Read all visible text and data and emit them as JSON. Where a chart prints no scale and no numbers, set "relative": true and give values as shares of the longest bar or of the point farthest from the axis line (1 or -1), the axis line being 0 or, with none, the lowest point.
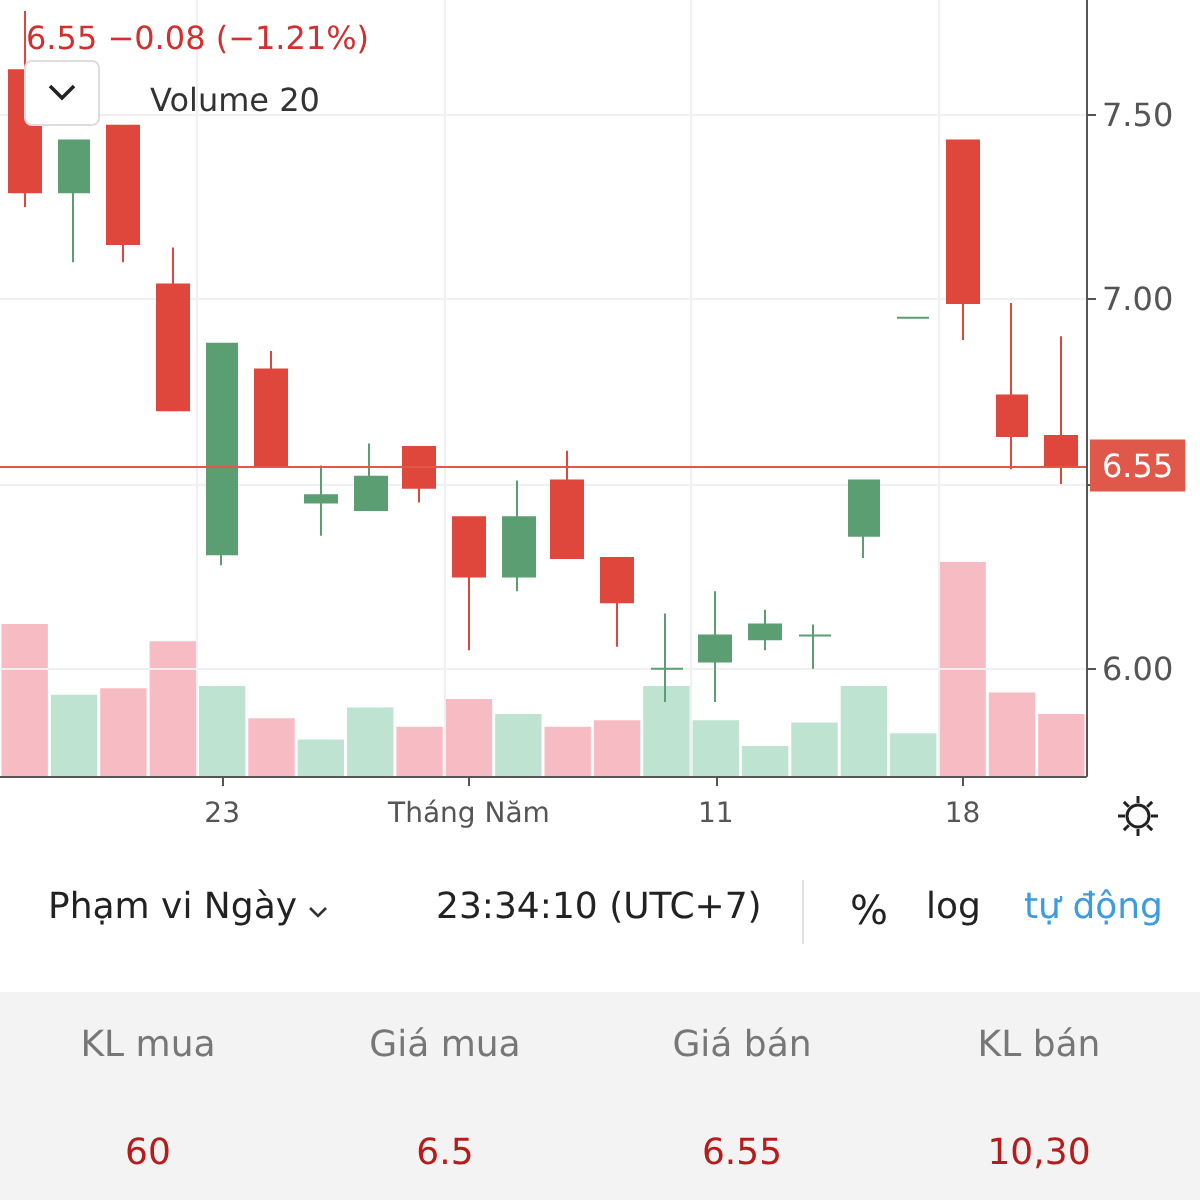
{
  "chart_data": [
    {
      "type": "candlestick",
      "title": "6.55 −0.08 (−1.21%)",
      "categories": [
        null,
        null,
        null,
        null,
        "23",
        null,
        null,
        null,
        null,
        "Tháng Năm",
        null,
        null,
        null,
        null,
        "11",
        null,
        null,
        null,
        null,
        "18",
        null,
        null
      ],
      "ohlc": [
        [
          7.62,
          7.78,
          7.25,
          7.29
        ],
        [
          7.29,
          7.43,
          7.1,
          7.43
        ],
        [
          7.47,
          7.47,
          7.1,
          7.15
        ],
        [
          7.04,
          7.14,
          6.7,
          6.7
        ],
        [
          6.31,
          6.88,
          6.28,
          6.88
        ],
        [
          6.81,
          6.86,
          6.55,
          6.55
        ],
        [
          6.45,
          6.55,
          6.36,
          6.47
        ],
        [
          6.43,
          6.61,
          6.43,
          6.52
        ],
        [
          6.6,
          6.6,
          6.45,
          6.49
        ],
        [
          6.41,
          6.41,
          6.05,
          6.25
        ],
        [
          6.25,
          6.51,
          6.21,
          6.41
        ],
        [
          6.51,
          6.59,
          6.3,
          6.3
        ],
        [
          6.3,
          6.3,
          6.06,
          6.18
        ],
        [
          6.0,
          6.15,
          5.91,
          6.0
        ],
        [
          6.02,
          6.21,
          5.91,
          6.09
        ],
        [
          6.08,
          6.16,
          6.05,
          6.12
        ],
        [
          6.09,
          6.12,
          6.0,
          6.09
        ],
        [
          6.36,
          6.51,
          6.3,
          6.51
        ],
        [
          6.95,
          6.95,
          6.95,
          6.95
        ],
        [
          7.43,
          7.43,
          6.89,
          6.99
        ],
        [
          6.74,
          6.99,
          6.54,
          6.63
        ],
        [
          6.63,
          6.9,
          6.5,
          6.55
        ]
      ],
      "colors": [
        "#e0473c",
        "#5a9e72",
        "#e0473c",
        "#e0473c",
        "#5a9e72",
        "#e0473c",
        "#5a9e72",
        "#5a9e72",
        "#e0473c",
        "#e0473c",
        "#5a9e72",
        "#e0473c",
        "#e0473c",
        "#5a9e72",
        "#5a9e72",
        "#5a9e72",
        "#5a9e72",
        "#5a9e72",
        "#5a9e72",
        "#e0473c",
        "#e0473c",
        "#e0473c"
      ],
      "ylim": [
        5.71,
        7.81
      ],
      "yticks": [
        {
          "value": 6,
          "label": "6.00"
        },
        {
          "value": 6.5,
          "label": null
        },
        {
          "value": 7,
          "label": "7.00"
        },
        {
          "value": 7.5,
          "label": "7.50"
        }
      ],
      "grid": true,
      "ref_lines": [
        {
          "axis": "y",
          "value": 6.55,
          "label": "6.55",
          "color": "#e0584a"
        }
      ]
    },
    {
      "type": "bar",
      "title": "Volume 20",
      "relative": true,
      "categories": [
        null,
        null,
        null,
        null,
        null,
        null,
        null,
        null,
        null,
        null,
        null,
        null,
        null,
        null,
        null,
        null,
        null,
        null,
        null,
        null,
        null,
        null
      ],
      "values": [
        0.71,
        0.38,
        0.41,
        0.63,
        0.42,
        0.27,
        0.17,
        0.32,
        0.23,
        0.36,
        0.29,
        0.23,
        0.26,
        0.42,
        0.26,
        0.14,
        0.25,
        0.42,
        0.2,
        1,
        0.39,
        0.29
      ],
      "colors": [
        "#f7bcc3",
        "#bfe3d1",
        "#f7bcc3",
        "#f7bcc3",
        "#bfe3d1",
        "#f7bcc3",
        "#bfe3d1",
        "#bfe3d1",
        "#f7bcc3",
        "#f7bcc3",
        "#bfe3d1",
        "#f7bcc3",
        "#f7bcc3",
        "#bfe3d1",
        "#bfe3d1",
        "#bfe3d1",
        "#bfe3d1",
        "#bfe3d1",
        "#bfe3d1",
        "#f7bcc3",
        "#f7bcc3",
        "#f7bcc3"
      ]
    },
    {
      "type": "other",
      "annotations": [
        "Phạm vi Ngày",
        "23:34:10 (UTC+7)",
        "%",
        "log",
        "tự động",
        "KL mua",
        "Giá mua",
        "Giá bán",
        "KL bán",
        "60",
        "6.5",
        "6.55",
        "10,30"
      ]
    }
  ]
}
